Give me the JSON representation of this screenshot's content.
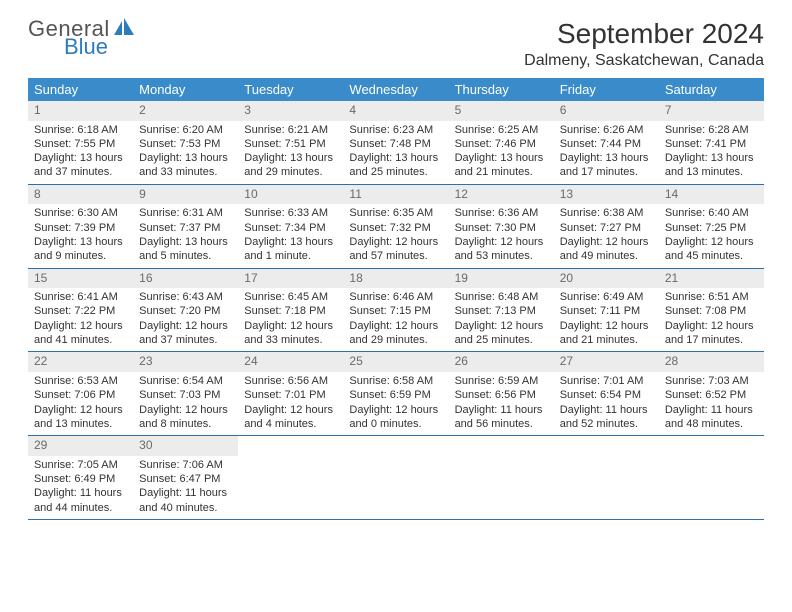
{
  "brand": {
    "word1": "General",
    "word2": "Blue",
    "icon_color": "#2f7bbf",
    "word1_color": "#555555",
    "word2_color": "#2f7bbf"
  },
  "title": "September 2024",
  "subtitle": "Dalmeny, Saskatchewan, Canada",
  "colors": {
    "header_bg": "#3a8bc9",
    "header_text": "#ffffff",
    "daynum_bg": "#ececec",
    "daynum_text": "#6a6a6a",
    "row_border": "#2f6fa8",
    "body_text": "#333333",
    "page_bg": "#ffffff"
  },
  "weekdays": [
    "Sunday",
    "Monday",
    "Tuesday",
    "Wednesday",
    "Thursday",
    "Friday",
    "Saturday"
  ],
  "days": [
    {
      "n": "1",
      "sr": "6:18 AM",
      "ss": "7:55 PM",
      "dl": "13 hours and 37 minutes."
    },
    {
      "n": "2",
      "sr": "6:20 AM",
      "ss": "7:53 PM",
      "dl": "13 hours and 33 minutes."
    },
    {
      "n": "3",
      "sr": "6:21 AM",
      "ss": "7:51 PM",
      "dl": "13 hours and 29 minutes."
    },
    {
      "n": "4",
      "sr": "6:23 AM",
      "ss": "7:48 PM",
      "dl": "13 hours and 25 minutes."
    },
    {
      "n": "5",
      "sr": "6:25 AM",
      "ss": "7:46 PM",
      "dl": "13 hours and 21 minutes."
    },
    {
      "n": "6",
      "sr": "6:26 AM",
      "ss": "7:44 PM",
      "dl": "13 hours and 17 minutes."
    },
    {
      "n": "7",
      "sr": "6:28 AM",
      "ss": "7:41 PM",
      "dl": "13 hours and 13 minutes."
    },
    {
      "n": "8",
      "sr": "6:30 AM",
      "ss": "7:39 PM",
      "dl": "13 hours and 9 minutes."
    },
    {
      "n": "9",
      "sr": "6:31 AM",
      "ss": "7:37 PM",
      "dl": "13 hours and 5 minutes."
    },
    {
      "n": "10",
      "sr": "6:33 AM",
      "ss": "7:34 PM",
      "dl": "13 hours and 1 minute."
    },
    {
      "n": "11",
      "sr": "6:35 AM",
      "ss": "7:32 PM",
      "dl": "12 hours and 57 minutes."
    },
    {
      "n": "12",
      "sr": "6:36 AM",
      "ss": "7:30 PM",
      "dl": "12 hours and 53 minutes."
    },
    {
      "n": "13",
      "sr": "6:38 AM",
      "ss": "7:27 PM",
      "dl": "12 hours and 49 minutes."
    },
    {
      "n": "14",
      "sr": "6:40 AM",
      "ss": "7:25 PM",
      "dl": "12 hours and 45 minutes."
    },
    {
      "n": "15",
      "sr": "6:41 AM",
      "ss": "7:22 PM",
      "dl": "12 hours and 41 minutes."
    },
    {
      "n": "16",
      "sr": "6:43 AM",
      "ss": "7:20 PM",
      "dl": "12 hours and 37 minutes."
    },
    {
      "n": "17",
      "sr": "6:45 AM",
      "ss": "7:18 PM",
      "dl": "12 hours and 33 minutes."
    },
    {
      "n": "18",
      "sr": "6:46 AM",
      "ss": "7:15 PM",
      "dl": "12 hours and 29 minutes."
    },
    {
      "n": "19",
      "sr": "6:48 AM",
      "ss": "7:13 PM",
      "dl": "12 hours and 25 minutes."
    },
    {
      "n": "20",
      "sr": "6:49 AM",
      "ss": "7:11 PM",
      "dl": "12 hours and 21 minutes."
    },
    {
      "n": "21",
      "sr": "6:51 AM",
      "ss": "7:08 PM",
      "dl": "12 hours and 17 minutes."
    },
    {
      "n": "22",
      "sr": "6:53 AM",
      "ss": "7:06 PM",
      "dl": "12 hours and 13 minutes."
    },
    {
      "n": "23",
      "sr": "6:54 AM",
      "ss": "7:03 PM",
      "dl": "12 hours and 8 minutes."
    },
    {
      "n": "24",
      "sr": "6:56 AM",
      "ss": "7:01 PM",
      "dl": "12 hours and 4 minutes."
    },
    {
      "n": "25",
      "sr": "6:58 AM",
      "ss": "6:59 PM",
      "dl": "12 hours and 0 minutes."
    },
    {
      "n": "26",
      "sr": "6:59 AM",
      "ss": "6:56 PM",
      "dl": "11 hours and 56 minutes."
    },
    {
      "n": "27",
      "sr": "7:01 AM",
      "ss": "6:54 PM",
      "dl": "11 hours and 52 minutes."
    },
    {
      "n": "28",
      "sr": "7:03 AM",
      "ss": "6:52 PM",
      "dl": "11 hours and 48 minutes."
    },
    {
      "n": "29",
      "sr": "7:05 AM",
      "ss": "6:49 PM",
      "dl": "11 hours and 44 minutes."
    },
    {
      "n": "30",
      "sr": "7:06 AM",
      "ss": "6:47 PM",
      "dl": "11 hours and 40 minutes."
    }
  ],
  "labels": {
    "sunrise": "Sunrise:",
    "sunset": "Sunset:",
    "daylight": "Daylight:"
  }
}
